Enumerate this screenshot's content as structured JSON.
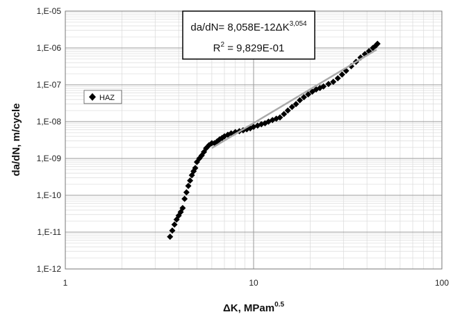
{
  "chart_data": {
    "type": "scatter",
    "xlabel": "ΔK, MPam",
    "xlabel_exponent": "0.5",
    "ylabel": "da/dN, m/cycle",
    "x_scale": "log",
    "y_scale": "log",
    "xlim": [
      1,
      100
    ],
    "ylim": [
      1e-12,
      1e-05
    ],
    "x_ticks": [
      {
        "value": 1,
        "label": "1"
      },
      {
        "value": 10,
        "label": "10"
      },
      {
        "value": 100,
        "label": "100"
      }
    ],
    "y_ticks": [
      {
        "value": 1e-12,
        "label": "1,E-12"
      },
      {
        "value": 1e-11,
        "label": "1,E-11"
      },
      {
        "value": 1e-10,
        "label": "1,E-10"
      },
      {
        "value": 1e-09,
        "label": "1,E-09"
      },
      {
        "value": 1e-08,
        "label": "1,E-08"
      },
      {
        "value": 1e-07,
        "label": "1,E-07"
      },
      {
        "value": 1e-06,
        "label": "1,E-06"
      },
      {
        "value": 1e-05,
        "label": "1,E-05"
      }
    ],
    "grid": true,
    "legend": {
      "position": "left",
      "entries": [
        "HAZ"
      ]
    },
    "annotation": {
      "line1_base": "da/dN= 8,058E-12ΔK",
      "line1_exponent": "3,054",
      "line2_base": "R",
      "line2_exponent": "2",
      "line2_value": " = 9,829E-01"
    },
    "trendline": {
      "coefficient": 8.058e-12,
      "exponent": 3.054,
      "x_range": [
        6,
        45
      ],
      "color": "#aaaaaa"
    },
    "series": [
      {
        "name": "HAZ",
        "marker": "diamond",
        "color": "#000000",
        "points": [
          [
            3.6,
            7.5e-12
          ],
          [
            3.7,
            1.1e-11
          ],
          [
            3.8,
            1.6e-11
          ],
          [
            3.9,
            2.2e-11
          ],
          [
            4.0,
            2.8e-11
          ],
          [
            4.1,
            3.5e-11
          ],
          [
            4.2,
            4.5e-11
          ],
          [
            4.3,
            8e-11
          ],
          [
            4.4,
            1.2e-10
          ],
          [
            4.5,
            1.8e-10
          ],
          [
            4.6,
            2.5e-10
          ],
          [
            4.7,
            3.5e-10
          ],
          [
            4.8,
            4.5e-10
          ],
          [
            4.9,
            5.5e-10
          ],
          [
            5.0,
            8e-10
          ],
          [
            5.15,
            1e-09
          ],
          [
            5.3,
            1.2e-09
          ],
          [
            5.45,
            1.5e-09
          ],
          [
            5.6,
            1.9e-09
          ],
          [
            5.8,
            2.3e-09
          ],
          [
            6.0,
            2.6e-09
          ],
          [
            6.2,
            2.6e-09
          ],
          [
            6.4,
            2.9e-09
          ],
          [
            6.6,
            3.3e-09
          ],
          [
            6.8,
            3.6e-09
          ],
          [
            7.0,
            4e-09
          ],
          [
            7.3,
            4.4e-09
          ],
          [
            7.6,
            4.8e-09
          ],
          [
            8.0,
            5.2e-09
          ],
          [
            8.4,
            5.5e-09
          ],
          [
            8.8,
            5.8e-09
          ],
          [
            9.2,
            6.2e-09
          ],
          [
            9.6,
            6.6e-09
          ],
          [
            10.0,
            7.2e-09
          ],
          [
            10.5,
            7.8e-09
          ],
          [
            11.0,
            8.5e-09
          ],
          [
            11.5,
            9e-09
          ],
          [
            12.0,
            1e-08
          ],
          [
            12.6,
            1.1e-08
          ],
          [
            13.2,
            1.2e-08
          ],
          [
            13.8,
            1.3e-08
          ],
          [
            14.5,
            1.6e-08
          ],
          [
            15.2,
            2e-08
          ],
          [
            16.0,
            2.5e-08
          ],
          [
            16.8,
            3e-08
          ],
          [
            17.6,
            3.8e-08
          ],
          [
            18.5,
            4.6e-08
          ],
          [
            19.5,
            5.5e-08
          ],
          [
            20.5,
            6.5e-08
          ],
          [
            21.5,
            7.5e-08
          ],
          [
            22.5,
            8.2e-08
          ],
          [
            23.5,
            9e-08
          ],
          [
            25.0,
            1.05e-07
          ],
          [
            26.5,
            1.2e-07
          ],
          [
            28.0,
            1.5e-07
          ],
          [
            29.5,
            1.9e-07
          ],
          [
            31.0,
            2.4e-07
          ],
          [
            33.0,
            3.2e-07
          ],
          [
            35.0,
            4.2e-07
          ],
          [
            37.0,
            5.5e-07
          ],
          [
            39.0,
            6.8e-07
          ],
          [
            41.0,
            8.2e-07
          ],
          [
            43.0,
            1e-06
          ],
          [
            44.5,
            1.15e-06
          ],
          [
            45.5,
            1.3e-06
          ]
        ]
      }
    ]
  }
}
